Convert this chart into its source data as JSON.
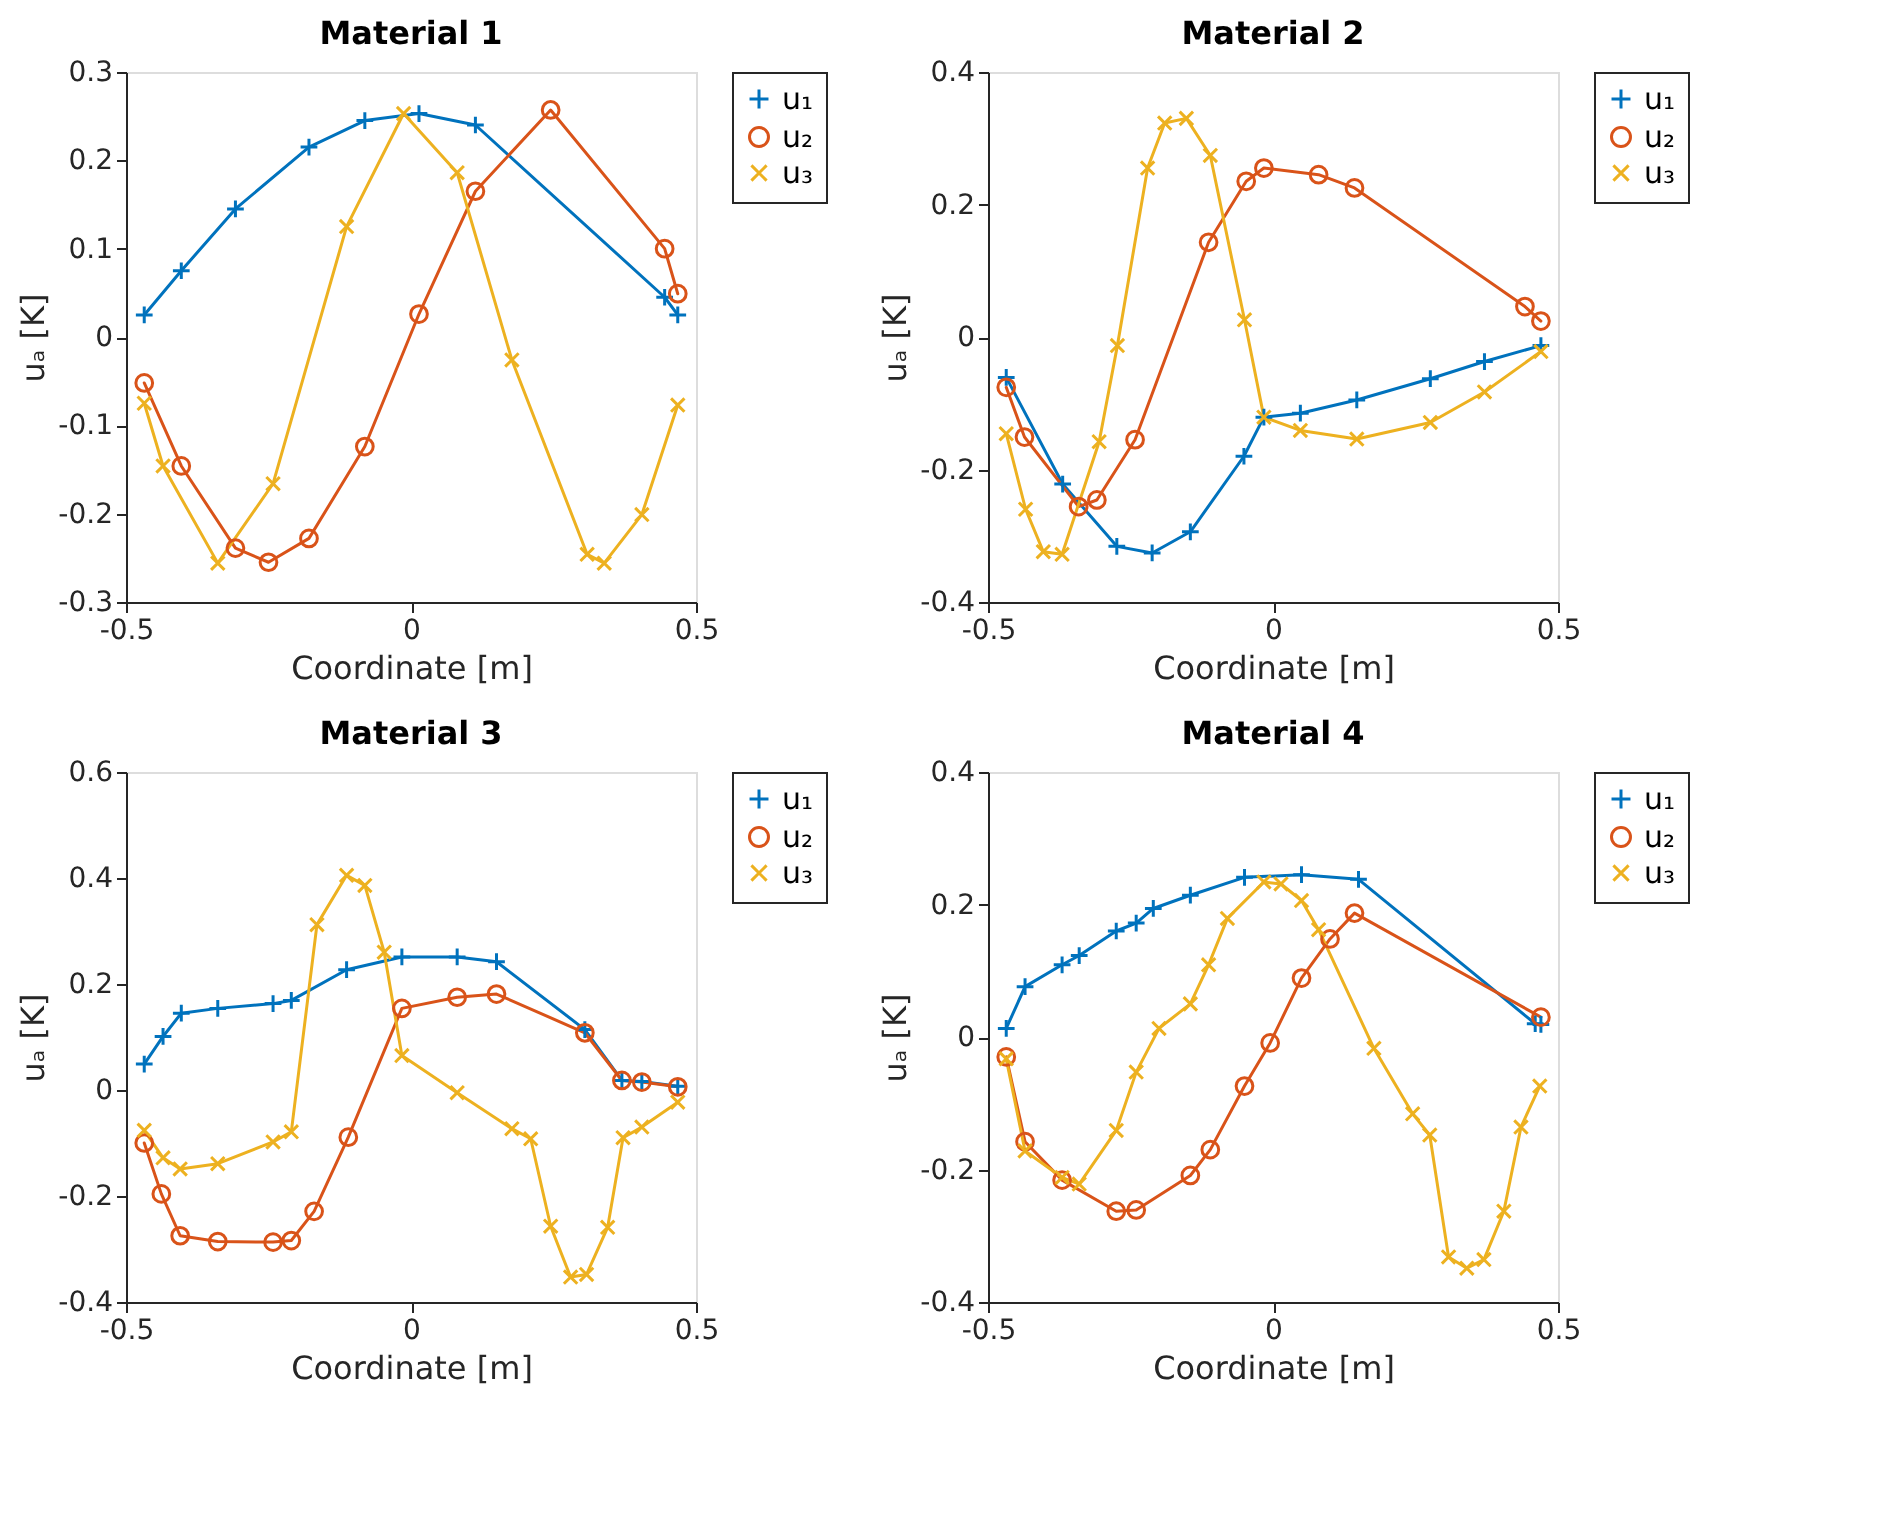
{
  "chart_data": [
    {
      "type": "line",
      "title": "Material 1",
      "xlabel": "Coordinate [m]",
      "ylabel": "uₐ [K]",
      "xlim": [
        -0.5,
        0.5
      ],
      "xticks": [
        -0.5,
        0,
        0.5
      ],
      "ylim": [
        -0.3,
        0.3
      ],
      "yticks": [
        -0.3,
        -0.2,
        -0.1,
        0,
        0.1,
        0.2,
        0.3
      ],
      "legend": "top right",
      "grid": false,
      "series": [
        {
          "name": "u₁",
          "color": "#0072bd",
          "marker": "cross",
          "x": [
            -0.468,
            -0.403,
            -0.308,
            -0.179,
            -0.081,
            0.014,
            0.113,
            0.445,
            0.468
          ],
          "values": [
            0.025,
            0.075,
            0.145,
            0.215,
            0.245,
            0.253,
            0.24,
            0.045,
            0.025
          ]
        },
        {
          "name": "u₂",
          "color": "#d95319",
          "marker": "circle",
          "x": [
            -0.468,
            -0.403,
            -0.308,
            -0.25,
            -0.179,
            -0.081,
            0.014,
            0.113,
            0.245,
            0.445,
            0.468
          ],
          "values": [
            -0.052,
            -0.146,
            -0.239,
            -0.255,
            -0.228,
            -0.124,
            0.026,
            0.165,
            0.257,
            0.1,
            0.049
          ]
        },
        {
          "name": "u₃",
          "color": "#edb120",
          "marker": "x",
          "x": [
            -0.468,
            -0.435,
            -0.339,
            -0.242,
            -0.113,
            -0.013,
            0.081,
            0.177,
            0.309,
            0.339,
            0.405,
            0.468
          ],
          "values": [
            -0.075,
            -0.146,
            -0.256,
            -0.166,
            0.125,
            0.253,
            0.186,
            -0.026,
            -0.246,
            -0.256,
            -0.201,
            -0.077
          ]
        }
      ]
    },
    {
      "type": "line",
      "title": "Material 2",
      "xlabel": "Coordinate [m]",
      "ylabel": "uₐ [K]",
      "xlim": [
        -0.5,
        0.5
      ],
      "xticks": [
        -0.5,
        0,
        0.5
      ],
      "ylim": [
        -0.4,
        0.4
      ],
      "yticks": [
        -0.4,
        -0.2,
        0,
        0.2,
        0.4
      ],
      "legend": "top right",
      "grid": false,
      "series": [
        {
          "name": "u₁",
          "color": "#0072bd",
          "marker": "cross",
          "x": [
            -0.468,
            -0.369,
            -0.274,
            -0.212,
            -0.145,
            -0.051,
            -0.016,
            0.048,
            0.147,
            0.276,
            0.371,
            0.47
          ],
          "values": [
            -0.061,
            -0.222,
            -0.316,
            -0.326,
            -0.294,
            -0.18,
            -0.121,
            -0.115,
            -0.095,
            -0.063,
            -0.037,
            -0.013
          ]
        },
        {
          "name": "u₂",
          "color": "#d95319",
          "marker": "circle",
          "x": [
            -0.468,
            -0.436,
            -0.341,
            -0.309,
            -0.242,
            -0.113,
            -0.047,
            -0.016,
            0.08,
            0.143,
            0.442,
            0.47
          ],
          "values": [
            -0.076,
            -0.151,
            -0.256,
            -0.246,
            -0.155,
            0.143,
            0.235,
            0.255,
            0.245,
            0.225,
            0.046,
            0.024
          ]
        },
        {
          "name": "u₃",
          "color": "#edb120",
          "marker": "x",
          "x": [
            -0.468,
            -0.434,
            -0.403,
            -0.37,
            -0.305,
            -0.273,
            -0.22,
            -0.19,
            -0.152,
            -0.11,
            -0.05,
            -0.016,
            0.048,
            0.147,
            0.276,
            0.371,
            0.47
          ],
          "values": [
            -0.146,
            -0.26,
            -0.324,
            -0.328,
            -0.158,
            -0.013,
            0.255,
            0.323,
            0.33,
            0.274,
            0.026,
            -0.121,
            -0.141,
            -0.154,
            -0.129,
            -0.083,
            -0.022
          ]
        }
      ]
    },
    {
      "type": "line",
      "title": "Material 3",
      "xlabel": "Coordinate [m]",
      "ylabel": "uₐ [K]",
      "xlim": [
        -0.5,
        0.5
      ],
      "xticks": [
        -0.5,
        0,
        0.5
      ],
      "ylim": [
        -0.4,
        0.6
      ],
      "yticks": [
        -0.4,
        -0.2,
        0,
        0.2,
        0.4,
        0.6
      ],
      "legend": "top right",
      "grid": false,
      "series": [
        {
          "name": "u₁",
          "color": "#0072bd",
          "marker": "cross",
          "x": [
            -0.468,
            -0.435,
            -0.403,
            -0.339,
            -0.242,
            -0.21,
            -0.113,
            -0.016,
            0.081,
            0.15,
            0.305,
            0.37,
            0.405,
            0.468
          ],
          "values": [
            0.049,
            0.101,
            0.145,
            0.154,
            0.163,
            0.169,
            0.227,
            0.251,
            0.251,
            0.242,
            0.114,
            0.018,
            0.016,
            0.007
          ]
        },
        {
          "name": "u₂",
          "color": "#d95319",
          "marker": "circle",
          "x": [
            -0.468,
            -0.438,
            -0.405,
            -0.339,
            -0.242,
            -0.21,
            -0.17,
            -0.11,
            -0.016,
            0.081,
            0.15,
            0.305,
            0.37,
            0.405,
            0.468
          ],
          "values": [
            -0.1,
            -0.196,
            -0.275,
            -0.286,
            -0.287,
            -0.284,
            -0.229,
            -0.089,
            0.154,
            0.175,
            0.181,
            0.108,
            0.018,
            0.015,
            0.006
          ]
        },
        {
          "name": "u₃",
          "color": "#edb120",
          "marker": "x",
          "x": [
            -0.468,
            -0.435,
            -0.405,
            -0.339,
            -0.242,
            -0.21,
            -0.165,
            -0.113,
            -0.081,
            -0.047,
            -0.016,
            0.081,
            0.177,
            0.21,
            0.245,
            0.28,
            0.308,
            0.345,
            0.372,
            0.405,
            0.468
          ],
          "values": [
            -0.076,
            -0.128,
            -0.149,
            -0.139,
            -0.098,
            -0.079,
            0.312,
            0.405,
            0.386,
            0.26,
            0.065,
            -0.005,
            -0.073,
            -0.092,
            -0.257,
            -0.353,
            -0.348,
            -0.259,
            -0.09,
            -0.07,
            -0.023
          ]
        }
      ]
    },
    {
      "type": "line",
      "title": "Material 4",
      "xlabel": "Coordinate [m]",
      "ylabel": "uₐ [K]",
      "xlim": [
        -0.5,
        0.5
      ],
      "xticks": [
        -0.5,
        0,
        0.5
      ],
      "ylim": [
        -0.4,
        0.4
      ],
      "yticks": [
        -0.4,
        -0.2,
        0,
        0.2,
        0.4
      ],
      "legend": "top right",
      "grid": false,
      "series": [
        {
          "name": "u₁",
          "color": "#0072bd",
          "marker": "cross",
          "x": [
            -0.468,
            -0.435,
            -0.37,
            -0.34,
            -0.275,
            -0.24,
            -0.21,
            -0.145,
            -0.05,
            0.05,
            0.15,
            0.46,
            0.47
          ],
          "values": [
            0.013,
            0.076,
            0.109,
            0.123,
            0.16,
            0.172,
            0.194,
            0.214,
            0.241,
            0.245,
            0.238,
            0.02,
            0.019
          ]
        },
        {
          "name": "u₂",
          "color": "#d95319",
          "marker": "circle",
          "x": [
            -0.468,
            -0.435,
            -0.37,
            -0.275,
            -0.24,
            -0.145,
            -0.11,
            -0.05,
            -0.005,
            0.05,
            0.1,
            0.143,
            0.47
          ],
          "values": [
            -0.03,
            -0.158,
            -0.216,
            -0.263,
            -0.261,
            -0.209,
            -0.17,
            -0.074,
            -0.009,
            0.089,
            0.148,
            0.187,
            0.03
          ]
        },
        {
          "name": "u₃",
          "color": "#edb120",
          "marker": "x",
          "x": [
            -0.468,
            -0.435,
            -0.37,
            -0.34,
            -0.275,
            -0.24,
            -0.2,
            -0.145,
            -0.113,
            -0.08,
            -0.016,
            0.014,
            0.05,
            0.08,
            0.177,
            0.245,
            0.275,
            0.308,
            0.34,
            0.37,
            0.405,
            0.435,
            0.468
          ],
          "values": [
            -0.033,
            -0.172,
            -0.212,
            -0.222,
            -0.141,
            -0.053,
            0.013,
            0.05,
            0.109,
            0.179,
            0.234,
            0.231,
            0.206,
            0.162,
            -0.017,
            -0.116,
            -0.148,
            -0.332,
            -0.349,
            -0.336,
            -0.263,
            -0.136,
            -0.074
          ]
        }
      ]
    }
  ]
}
